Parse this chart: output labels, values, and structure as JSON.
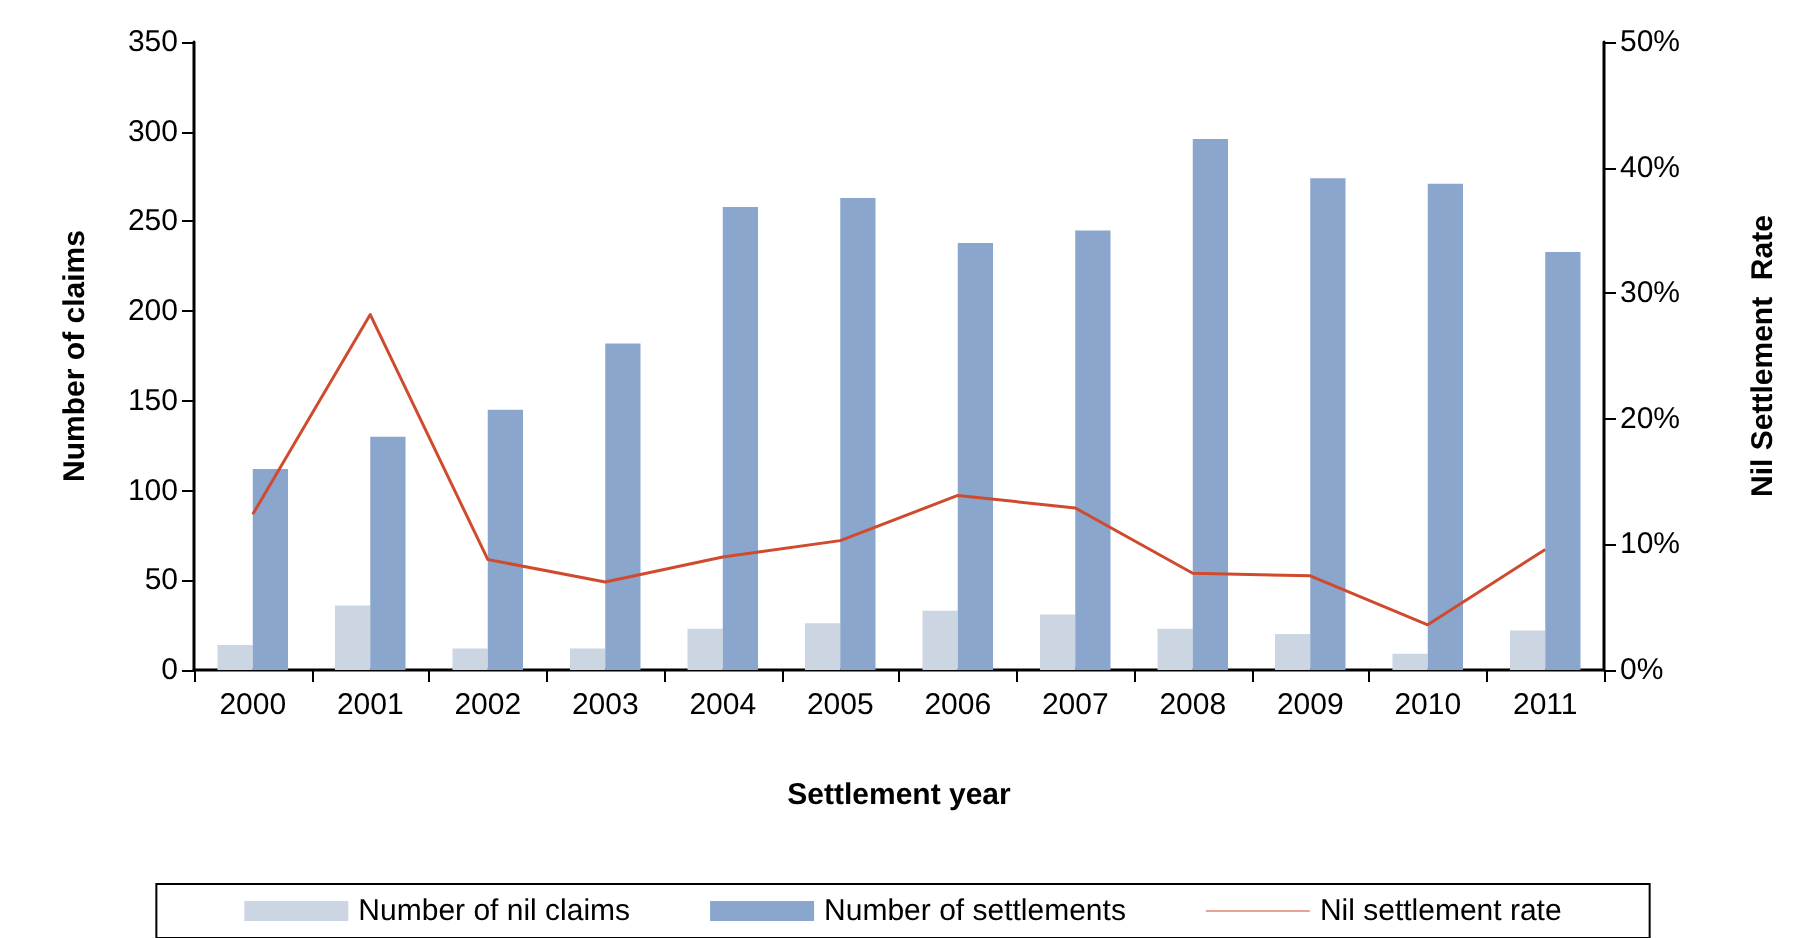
{
  "chart_data": {
    "type": "bar",
    "xlabel": "Settlement year",
    "ylabel": "Number of claims",
    "y2label": "Nil Settlement  Rate",
    "categories": [
      "2000",
      "2001",
      "2002",
      "2003",
      "2004",
      "2005",
      "2006",
      "2007",
      "2008",
      "2009",
      "2010",
      "2011"
    ],
    "series": [
      {
        "name": "Number of nil claims",
        "color": "#ccd6e2",
        "values": [
          14,
          36,
          12,
          12,
          23,
          26,
          33,
          31,
          23,
          20,
          9,
          22
        ]
      },
      {
        "name": "Number of settlements",
        "color": "#8aa6cc",
        "values": [
          112,
          130,
          145,
          182,
          258,
          263,
          238,
          245,
          296,
          274,
          271,
          233
        ]
      },
      {
        "name": "Nil settlement rate",
        "type": "line",
        "axis": "y2",
        "color": "#d04a2e",
        "values": [
          12.4,
          28.3,
          8.8,
          7.0,
          9.0,
          10.3,
          13.9,
          12.9,
          7.7,
          7.5,
          3.6,
          9.6
        ]
      }
    ],
    "ylim": [
      0,
      350
    ],
    "yticks": [
      0,
      50,
      100,
      150,
      200,
      250,
      300,
      350
    ],
    "y2lim": [
      0,
      50
    ],
    "y2ticks": [
      {
        "value": 0,
        "label": "0%"
      },
      {
        "value": 10,
        "label": "10%"
      },
      {
        "value": 20,
        "label": "20%"
      },
      {
        "value": 30,
        "label": "30%"
      },
      {
        "value": 40,
        "label": "40%"
      },
      {
        "value": 50,
        "label": "50%"
      }
    ],
    "grid": false,
    "legend": "bottom",
    "marker": "none"
  }
}
